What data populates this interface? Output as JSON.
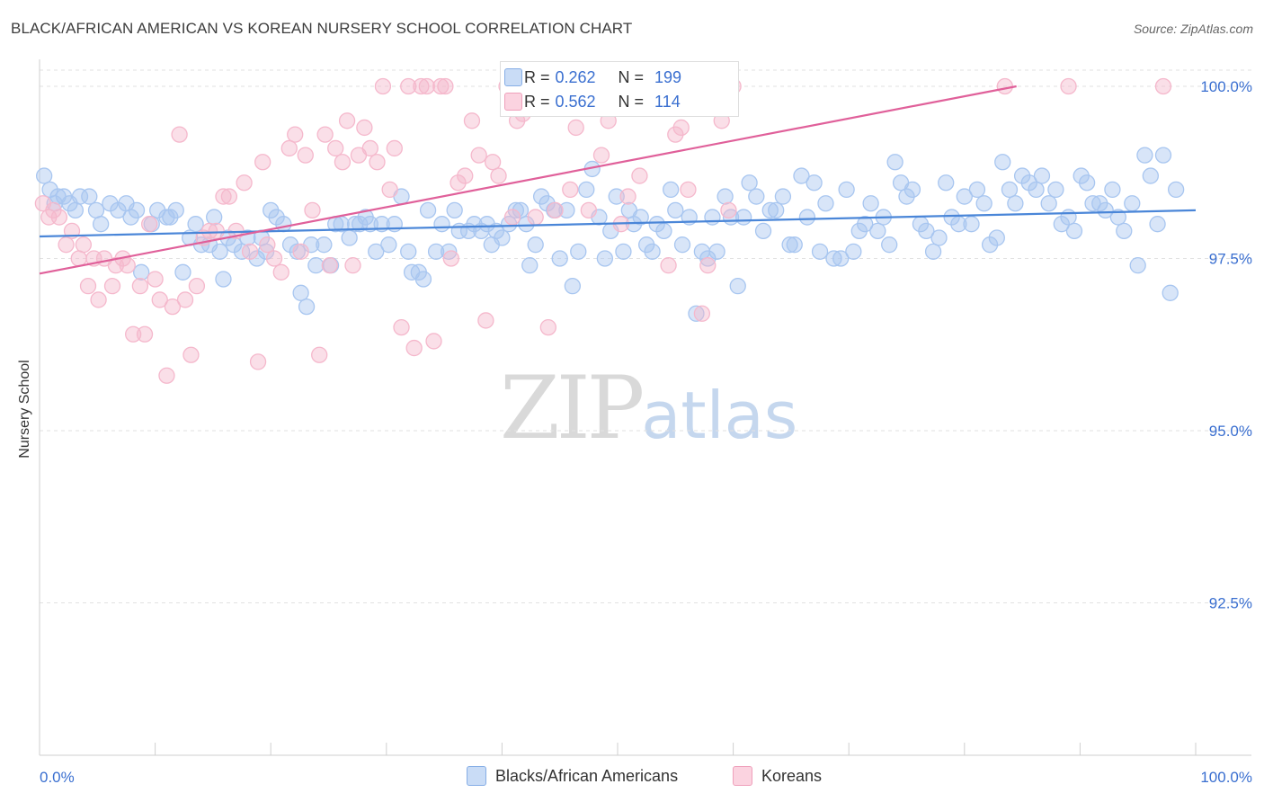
{
  "header": {
    "title": "BLACK/AFRICAN AMERICAN VS KOREAN NURSERY SCHOOL CORRELATION CHART",
    "source": "Source: ZipAtlas.com"
  },
  "watermark": {
    "zip": "ZIP",
    "atlas": "atlas"
  },
  "legend": {
    "rows": [
      {
        "r_label": "R =",
        "r_value": "0.262",
        "n_label": "N =",
        "n_value": "199",
        "color": "#a8c6f0"
      },
      {
        "r_label": "R =",
        "r_value": "0.562",
        "n_label": "N =",
        "n_value": "114",
        "color": "#f5b8cc"
      }
    ]
  },
  "bottom_legend": {
    "items": [
      {
        "label": "Blacks/African Americans",
        "color": "#a8c6f0"
      },
      {
        "label": "Koreans",
        "color": "#f5b8cc"
      }
    ]
  },
  "chart_data": {
    "type": "scatter",
    "xlabel": "",
    "ylabel": "Nursery School",
    "xlim": [
      0,
      100
    ],
    "ylim": [
      90.0,
      100.4
    ],
    "x_tick_labels": {
      "left": "0.0%",
      "right": "100.0%"
    },
    "y_ticks": [
      {
        "value": 100.0,
        "label": "100.0%"
      },
      {
        "value": 97.5,
        "label": "97.5%"
      },
      {
        "value": 95.0,
        "label": "95.0%"
      },
      {
        "value": 92.5,
        "label": "92.5%"
      }
    ],
    "grid": true,
    "series": [
      {
        "name": "Blacks/African Americans",
        "color": "#4a86d8",
        "fill": "#a8c6f0",
        "trend": {
          "x": [
            0,
            100
          ],
          "y": [
            97.82,
            98.2
          ]
        },
        "points": [
          [
            0.4,
            98.7
          ],
          [
            0.9,
            98.5
          ],
          [
            1.3,
            98.3
          ],
          [
            1.6,
            98.4
          ],
          [
            2.1,
            98.4
          ],
          [
            2.6,
            98.3
          ],
          [
            3.1,
            98.2
          ],
          [
            3.5,
            98.4
          ],
          [
            4.3,
            98.4
          ],
          [
            4.9,
            98.2
          ],
          [
            5.3,
            98.0
          ],
          [
            6.1,
            98.3
          ],
          [
            6.8,
            98.2
          ],
          [
            7.5,
            98.3
          ],
          [
            7.9,
            98.1
          ],
          [
            8.4,
            98.2
          ],
          [
            8.8,
            97.3
          ],
          [
            9.7,
            98.0
          ],
          [
            10.2,
            98.2
          ],
          [
            11.0,
            98.1
          ],
          [
            11.3,
            98.1
          ],
          [
            11.8,
            98.2
          ],
          [
            12.4,
            97.3
          ],
          [
            13.0,
            97.8
          ],
          [
            13.5,
            98.0
          ],
          [
            14.0,
            97.7
          ],
          [
            14.7,
            97.7
          ],
          [
            15.1,
            98.1
          ],
          [
            15.6,
            97.6
          ],
          [
            15.9,
            97.2
          ],
          [
            16.3,
            97.8
          ],
          [
            16.8,
            97.7
          ],
          [
            17.5,
            97.6
          ],
          [
            18.0,
            97.8
          ],
          [
            18.8,
            97.5
          ],
          [
            19.2,
            97.8
          ],
          [
            19.6,
            97.6
          ],
          [
            20.0,
            98.2
          ],
          [
            20.5,
            98.1
          ],
          [
            21.1,
            98.0
          ],
          [
            21.7,
            97.7
          ],
          [
            22.3,
            97.6
          ],
          [
            22.6,
            97.0
          ],
          [
            23.1,
            96.8
          ],
          [
            23.5,
            97.7
          ],
          [
            23.9,
            97.4
          ],
          [
            24.6,
            97.7
          ],
          [
            25.2,
            97.4
          ],
          [
            25.6,
            98.0
          ],
          [
            26.1,
            98.0
          ],
          [
            26.8,
            97.8
          ],
          [
            27.3,
            98.0
          ],
          [
            27.7,
            98.0
          ],
          [
            28.2,
            98.1
          ],
          [
            28.6,
            98.0
          ],
          [
            29.1,
            97.6
          ],
          [
            29.6,
            98.0
          ],
          [
            30.2,
            97.7
          ],
          [
            30.7,
            98.0
          ],
          [
            31.3,
            98.4
          ],
          [
            31.9,
            97.6
          ],
          [
            32.2,
            97.3
          ],
          [
            32.8,
            97.3
          ],
          [
            33.2,
            97.2
          ],
          [
            33.6,
            98.2
          ],
          [
            34.3,
            97.6
          ],
          [
            34.8,
            98.0
          ],
          [
            35.4,
            97.6
          ],
          [
            35.9,
            98.2
          ],
          [
            36.3,
            97.9
          ],
          [
            37.1,
            97.9
          ],
          [
            37.6,
            98.0
          ],
          [
            38.2,
            97.9
          ],
          [
            38.7,
            98.0
          ],
          [
            39.1,
            97.7
          ],
          [
            39.5,
            97.9
          ],
          [
            40.0,
            97.8
          ],
          [
            40.6,
            98.0
          ],
          [
            41.2,
            98.2
          ],
          [
            41.6,
            98.2
          ],
          [
            42.1,
            98.0
          ],
          [
            42.4,
            97.4
          ],
          [
            42.9,
            97.7
          ],
          [
            43.4,
            98.4
          ],
          [
            43.9,
            98.3
          ],
          [
            44.5,
            98.2
          ],
          [
            45.0,
            97.5
          ],
          [
            45.6,
            98.2
          ],
          [
            46.1,
            97.1
          ],
          [
            46.6,
            97.6
          ],
          [
            47.3,
            98.5
          ],
          [
            47.8,
            98.8
          ],
          [
            48.4,
            98.1
          ],
          [
            48.9,
            97.5
          ],
          [
            49.4,
            97.9
          ],
          [
            49.9,
            98.4
          ],
          [
            50.5,
            97.6
          ],
          [
            51.0,
            98.2
          ],
          [
            51.4,
            98.0
          ],
          [
            52.0,
            98.1
          ],
          [
            52.5,
            97.7
          ],
          [
            53.0,
            97.6
          ],
          [
            53.4,
            98.0
          ],
          [
            54.0,
            97.9
          ],
          [
            54.6,
            98.5
          ],
          [
            55.0,
            98.2
          ],
          [
            55.6,
            97.7
          ],
          [
            56.2,
            98.1
          ],
          [
            56.8,
            96.7
          ],
          [
            57.3,
            97.6
          ],
          [
            57.8,
            97.5
          ],
          [
            58.2,
            98.1
          ],
          [
            58.6,
            97.6
          ],
          [
            59.3,
            98.4
          ],
          [
            59.8,
            98.1
          ],
          [
            60.4,
            97.1
          ],
          [
            60.9,
            98.1
          ],
          [
            61.4,
            98.6
          ],
          [
            62.0,
            98.4
          ],
          [
            62.6,
            97.9
          ],
          [
            63.2,
            98.2
          ],
          [
            63.7,
            98.2
          ],
          [
            64.3,
            98.4
          ],
          [
            64.9,
            97.7
          ],
          [
            65.3,
            97.7
          ],
          [
            65.9,
            98.7
          ],
          [
            66.4,
            98.1
          ],
          [
            67.0,
            98.6
          ],
          [
            67.5,
            97.6
          ],
          [
            68.0,
            98.3
          ],
          [
            68.7,
            97.5
          ],
          [
            69.3,
            97.5
          ],
          [
            69.8,
            98.5
          ],
          [
            70.4,
            97.6
          ],
          [
            70.9,
            97.9
          ],
          [
            71.4,
            98.0
          ],
          [
            71.9,
            98.3
          ],
          [
            72.5,
            97.9
          ],
          [
            73.0,
            98.1
          ],
          [
            73.5,
            97.7
          ],
          [
            74.0,
            98.9
          ],
          [
            74.5,
            98.6
          ],
          [
            75.0,
            98.4
          ],
          [
            75.5,
            98.5
          ],
          [
            76.2,
            98.0
          ],
          [
            76.7,
            97.9
          ],
          [
            77.3,
            97.6
          ],
          [
            77.8,
            97.8
          ],
          [
            78.4,
            98.6
          ],
          [
            78.9,
            98.1
          ],
          [
            79.5,
            98.0
          ],
          [
            80.0,
            98.4
          ],
          [
            80.6,
            98.0
          ],
          [
            81.1,
            98.5
          ],
          [
            81.7,
            98.3
          ],
          [
            82.2,
            97.7
          ],
          [
            82.8,
            97.8
          ],
          [
            83.3,
            98.9
          ],
          [
            83.9,
            98.5
          ],
          [
            84.4,
            98.3
          ],
          [
            85.0,
            98.7
          ],
          [
            85.6,
            98.6
          ],
          [
            86.2,
            98.5
          ],
          [
            86.7,
            98.7
          ],
          [
            87.3,
            98.3
          ],
          [
            87.9,
            98.5
          ],
          [
            88.4,
            98.0
          ],
          [
            89.0,
            98.1
          ],
          [
            89.5,
            97.9
          ],
          [
            90.1,
            98.7
          ],
          [
            90.6,
            98.6
          ],
          [
            91.1,
            98.3
          ],
          [
            91.7,
            98.3
          ],
          [
            92.2,
            98.2
          ],
          [
            92.8,
            98.5
          ],
          [
            93.3,
            98.1
          ],
          [
            93.8,
            97.9
          ],
          [
            94.5,
            98.3
          ],
          [
            95.0,
            97.4
          ],
          [
            95.6,
            99.0
          ],
          [
            96.1,
            98.7
          ],
          [
            96.7,
            98.0
          ],
          [
            97.2,
            99.0
          ],
          [
            97.8,
            97.0
          ],
          [
            98.3,
            98.5
          ]
        ]
      },
      {
        "name": "Koreans",
        "color": "#e0609a",
        "fill": "#f5b8cc",
        "trend": {
          "x": [
            0,
            84.5
          ],
          "y": [
            97.28,
            100.0
          ]
        },
        "points": [
          [
            0.3,
            98.3
          ],
          [
            0.8,
            98.1
          ],
          [
            1.2,
            98.2
          ],
          [
            1.7,
            98.1
          ],
          [
            2.3,
            97.7
          ],
          [
            2.8,
            97.9
          ],
          [
            3.4,
            97.5
          ],
          [
            3.8,
            97.7
          ],
          [
            4.2,
            97.1
          ],
          [
            4.7,
            97.5
          ],
          [
            5.1,
            96.9
          ],
          [
            5.6,
            97.5
          ],
          [
            6.3,
            97.1
          ],
          [
            6.6,
            97.4
          ],
          [
            7.2,
            97.5
          ],
          [
            7.6,
            97.4
          ],
          [
            8.1,
            96.4
          ],
          [
            8.7,
            97.1
          ],
          [
            9.1,
            96.4
          ],
          [
            9.5,
            98.0
          ],
          [
            10.0,
            97.2
          ],
          [
            10.4,
            96.9
          ],
          [
            11.0,
            95.8
          ],
          [
            11.5,
            96.8
          ],
          [
            12.1,
            99.3
          ],
          [
            12.6,
            96.9
          ],
          [
            13.1,
            96.1
          ],
          [
            13.6,
            97.1
          ],
          [
            14.2,
            97.8
          ],
          [
            14.7,
            97.9
          ],
          [
            15.3,
            97.9
          ],
          [
            15.9,
            98.4
          ],
          [
            16.4,
            98.4
          ],
          [
            17.0,
            97.9
          ],
          [
            17.7,
            98.6
          ],
          [
            18.2,
            97.6
          ],
          [
            18.9,
            96.0
          ],
          [
            19.3,
            98.9
          ],
          [
            19.7,
            97.7
          ],
          [
            20.3,
            97.5
          ],
          [
            20.9,
            97.3
          ],
          [
            21.6,
            99.1
          ],
          [
            22.1,
            99.3
          ],
          [
            22.6,
            97.6
          ],
          [
            23.0,
            99.0
          ],
          [
            23.6,
            98.2
          ],
          [
            24.2,
            96.1
          ],
          [
            24.7,
            99.3
          ],
          [
            25.1,
            97.4
          ],
          [
            25.6,
            99.1
          ],
          [
            26.2,
            98.9
          ],
          [
            26.6,
            99.5
          ],
          [
            27.1,
            97.4
          ],
          [
            27.6,
            99.0
          ],
          [
            28.1,
            99.4
          ],
          [
            28.6,
            99.1
          ],
          [
            29.2,
            98.9
          ],
          [
            29.7,
            100.0
          ],
          [
            30.3,
            98.5
          ],
          [
            30.7,
            99.1
          ],
          [
            31.3,
            96.5
          ],
          [
            31.9,
            100.0
          ],
          [
            32.4,
            96.2
          ],
          [
            33.0,
            100.0
          ],
          [
            33.5,
            100.0
          ],
          [
            34.1,
            96.3
          ],
          [
            34.7,
            100.0
          ],
          [
            35.1,
            100.0
          ],
          [
            35.6,
            97.5
          ],
          [
            36.2,
            98.6
          ],
          [
            36.8,
            98.7
          ],
          [
            37.4,
            99.5
          ],
          [
            38.0,
            99.0
          ],
          [
            38.6,
            96.6
          ],
          [
            39.2,
            98.9
          ],
          [
            39.7,
            98.7
          ],
          [
            40.4,
            100.0
          ],
          [
            40.9,
            98.1
          ],
          [
            41.3,
            99.5
          ],
          [
            41.8,
            99.6
          ],
          [
            42.3,
            100.0
          ],
          [
            42.9,
            98.1
          ],
          [
            43.5,
            100.0
          ],
          [
            44.0,
            96.5
          ],
          [
            44.6,
            98.2
          ],
          [
            45.3,
            100.0
          ],
          [
            45.9,
            98.5
          ],
          [
            46.4,
            99.4
          ],
          [
            47.0,
            100.0
          ],
          [
            47.5,
            98.2
          ],
          [
            48.1,
            100.0
          ],
          [
            48.6,
            99.0
          ],
          [
            49.2,
            99.5
          ],
          [
            49.8,
            100.0
          ],
          [
            50.3,
            98.0
          ],
          [
            50.9,
            98.4
          ],
          [
            51.4,
            100.0
          ],
          [
            51.9,
            98.7
          ],
          [
            52.6,
            100.0
          ],
          [
            53.2,
            99.8
          ],
          [
            53.8,
            100.0
          ],
          [
            54.4,
            97.4
          ],
          [
            55.0,
            99.3
          ],
          [
            55.5,
            99.4
          ],
          [
            56.1,
            98.5
          ],
          [
            56.6,
            99.7
          ],
          [
            57.3,
            96.7
          ],
          [
            57.8,
            97.4
          ],
          [
            58.5,
            100.0
          ],
          [
            59.0,
            99.5
          ],
          [
            59.6,
            98.2
          ],
          [
            60.0,
            100.0
          ],
          [
            83.5,
            100.0
          ],
          [
            89.0,
            100.0
          ],
          [
            97.2,
            100.0
          ]
        ]
      }
    ]
  }
}
